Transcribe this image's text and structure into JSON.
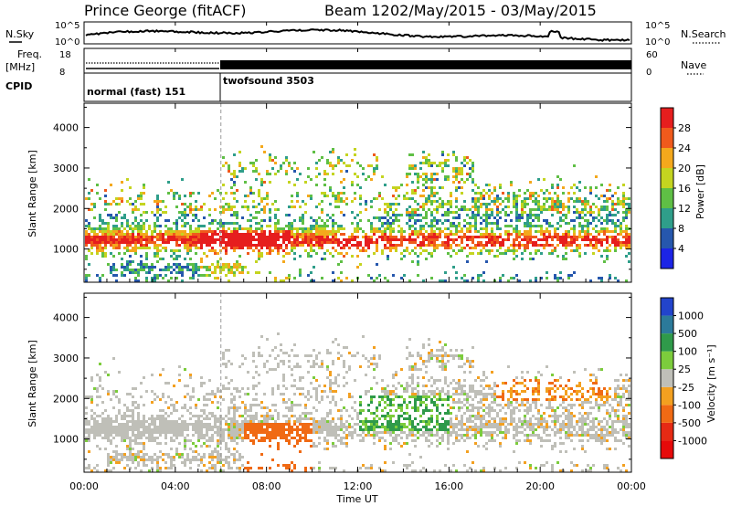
{
  "header": {
    "station": "Prince George (fitACF)",
    "beam": "Beam 12",
    "dates": "02/May/2015 - 03/May/2015"
  },
  "noise_panel": {
    "left_label": "N.Sky",
    "right_label": "N.Search",
    "left_ticks": [
      "10^5",
      "10^0"
    ],
    "right_ticks": [
      "10^5",
      "10^0"
    ]
  },
  "freq_panel": {
    "left_label_1": "Freq.",
    "left_label_2": "[MHz]",
    "left_ticks": [
      "18",
      "8"
    ],
    "right_label": "Nave",
    "right_ticks": [
      "60",
      "0"
    ]
  },
  "cpid": {
    "label": "CPID",
    "segments": [
      {
        "name": "normal (fast) 151",
        "start_hour": 0,
        "end_hour": 6
      },
      {
        "name": "twofsound 3503",
        "start_hour": 6,
        "end_hour": 24
      }
    ]
  },
  "x_axis": {
    "label": "Time UT",
    "ticks": [
      "00:00",
      "04:00",
      "08:00",
      "12:00",
      "16:00",
      "20:00",
      "00:00"
    ]
  },
  "chart_data": [
    {
      "type": "heatmap",
      "name": "power",
      "ylabel": "Slant Range [km]",
      "yticks": [
        "1000",
        "2000",
        "3000",
        "4000"
      ],
      "ylim": [
        180,
        4600
      ],
      "xlim_hours": [
        0,
        24
      ],
      "colorbar_label": "Power [dB]",
      "colorbar_ticks": [
        "4",
        "8",
        "12",
        "16",
        "20",
        "24",
        "28"
      ],
      "colorbar_colors": [
        "#1c24e6",
        "#2657ad",
        "#2f9e8a",
        "#5fbf45",
        "#c4d420",
        "#f4a81c",
        "#f05a1c",
        "#e61e1e"
      ]
    },
    {
      "type": "heatmap",
      "name": "velocity",
      "ylabel": "Slant Range [km]",
      "yticks": [
        "1000",
        "2000",
        "3000",
        "4000"
      ],
      "ylim": [
        180,
        4600
      ],
      "xlim_hours": [
        0,
        24
      ],
      "colorbar_label": "Velocity [m s⁻¹]",
      "colorbar_ticks": [
        "1000",
        "500",
        "100",
        "25",
        "-25",
        "-100",
        "-500",
        "-1000"
      ],
      "colorbar_colors": [
        "#2244cc",
        "#2c7a9a",
        "#2f9a4a",
        "#7ccc3c",
        "#bfbfb8",
        "#f3a020",
        "#f06a14",
        "#e62a14",
        "#e60a0a"
      ]
    }
  ]
}
